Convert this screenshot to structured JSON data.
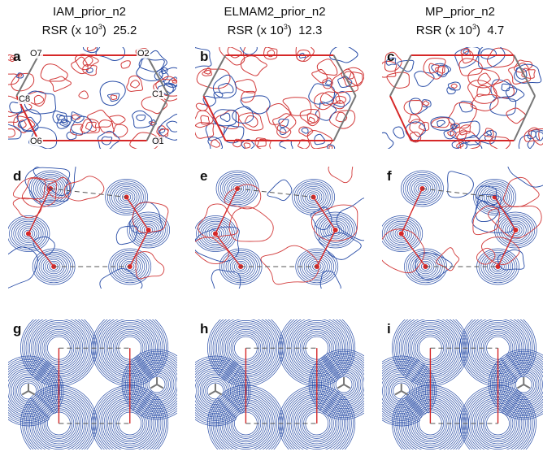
{
  "columns": [
    {
      "name": "IAM_prior_n2",
      "rsr_prefix": "RSR (x 10",
      "rsr_exp": "3",
      "rsr_suffix": ")",
      "rsr_value": "25.2"
    },
    {
      "name": "ELMAM2_prior_n2",
      "rsr_prefix": "RSR (x 10",
      "rsr_exp": "3",
      "rsr_suffix": ")",
      "rsr_value": "12.3"
    },
    {
      "name": "MP_prior_n2",
      "rsr_prefix": "RSR (x 10",
      "rsr_exp": "3",
      "rsr_suffix": ")",
      "rsr_value": "4.7"
    }
  ],
  "panels": {
    "row1": [
      "a",
      "b",
      "c"
    ],
    "row2": [
      "d",
      "e",
      "f"
    ],
    "row3": [
      "g",
      "h",
      "i"
    ]
  },
  "atoms": {
    "o7": "O7",
    "o2": "O2",
    "c8": "C8",
    "c1": "C1",
    "o6": "O6",
    "o1": "O1"
  },
  "colors": {
    "positive": "#2b4fa8",
    "negative": "#d23a3a",
    "bond": "#d62828",
    "ring": "#777777"
  }
}
